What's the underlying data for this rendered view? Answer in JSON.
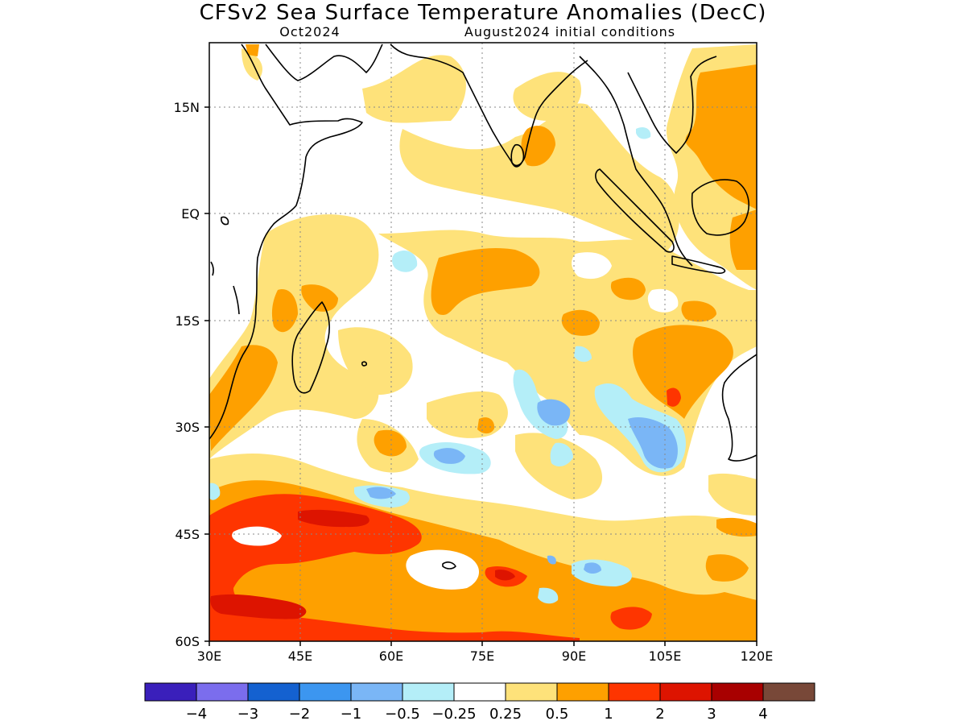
{
  "map": {
    "title": "CFSv2 Sea Surface Temperature Anomalies (DecC)",
    "subtitle_left": "Oct2024",
    "subtitle_right": "August2024 initial conditions",
    "lon_ticks": [
      "30E",
      "45E",
      "60E",
      "75E",
      "90E",
      "105E",
      "120E"
    ],
    "lat_ticks": [
      "15N",
      "EQ",
      "15S",
      "30S",
      "45S",
      "60S"
    ],
    "lon_range": [
      30,
      120
    ],
    "lat_range": [
      -60,
      24
    ],
    "grid": "dotted"
  },
  "legend": {
    "colors": [
      "#3a1fbb",
      "#7b6ded",
      "#1461d0",
      "#3c96f0",
      "#7ab6f6",
      "#b4eef8",
      "#ffffff",
      "#fee27a",
      "#fea000",
      "#fe3500",
      "#dd1400",
      "#a80000",
      "#784838"
    ],
    "labels": [
      "−4",
      "−3",
      "−2",
      "−1",
      "−0.5",
      "−0.25",
      "0.25",
      "0.5",
      "1",
      "2",
      "3",
      "4"
    ]
  }
}
